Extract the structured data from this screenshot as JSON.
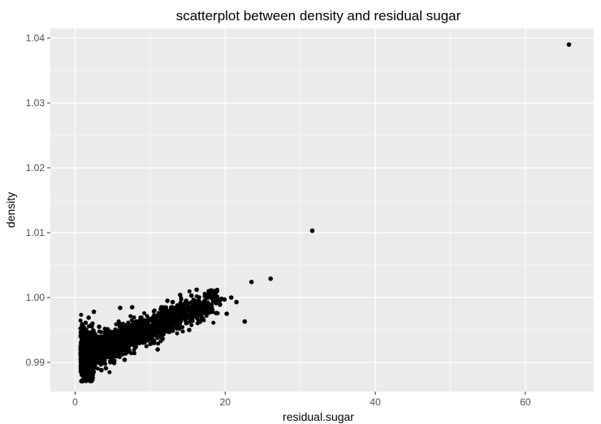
{
  "chart_data": {
    "type": "scatter",
    "title": "scatterplot between density and residual sugar",
    "xlabel": "residual.sugar",
    "ylabel": "density",
    "xlim": [
      -3.3,
      69.1
    ],
    "ylim": [
      0.9855,
      1.0415
    ],
    "x_ticks": [
      0,
      20,
      40,
      60
    ],
    "x_tick_labels": [
      "0",
      "20",
      "40",
      "60"
    ],
    "y_ticks": [
      0.99,
      1.0,
      1.01,
      1.02,
      1.03,
      1.04
    ],
    "y_tick_labels": [
      "0.99",
      "1.00",
      "1.01",
      "1.02",
      "1.03",
      "1.04"
    ],
    "grid": true,
    "background": "#EBEBEB",
    "grid_color": "#FFFFFF",
    "point_color": "#000000",
    "points": [
      [
        65.8,
        1.039
      ],
      [
        31.6,
        1.0103
      ],
      [
        26.05,
        1.0029
      ],
      [
        23.5,
        1.0024
      ],
      [
        22.6,
        0.9963
      ],
      [
        21.5,
        0.9993
      ],
      [
        20.8,
        1.0
      ],
      [
        19.9,
        0.9997
      ],
      [
        19.5,
        0.9998
      ],
      [
        19.25,
        0.9995
      ],
      [
        19.3,
        0.9989
      ],
      [
        18.8,
        0.9976
      ],
      [
        18.4,
        1.0005
      ],
      [
        17.8,
        1.0007
      ],
      [
        16.2,
        1.0012
      ],
      [
        17.4,
        0.9985
      ],
      [
        16.0,
        0.9971
      ],
      [
        17.0,
        0.9968
      ],
      [
        13.0,
        0.9993
      ],
      [
        14.0,
        1.0004
      ],
      [
        12.6,
        0.9952
      ],
      [
        10.3,
        0.993
      ],
      [
        8.0,
        0.9923
      ],
      [
        5.8,
        0.9913
      ],
      [
        5.2,
        0.9899
      ],
      [
        4.1,
        0.9891
      ],
      [
        3.5,
        0.9888
      ],
      [
        2.6,
        0.9897
      ],
      [
        1.5,
        0.9883
      ],
      [
        1.0,
        0.9873
      ],
      [
        0.9,
        0.9871
      ],
      [
        1.2,
        0.9875
      ],
      [
        2.5,
        0.9978
      ],
      [
        1.8,
        0.9969
      ],
      [
        1.4,
        0.9961
      ],
      [
        4.5,
        0.9935
      ],
      [
        6.0,
        0.9984
      ],
      [
        7.6,
        0.9985
      ],
      [
        11.5,
        0.9985
      ],
      [
        12.3,
        0.9995
      ],
      [
        14.8,
        0.9995
      ],
      [
        15.5,
        1.0003
      ],
      [
        20.2,
        0.9975
      ],
      [
        18.1,
        0.9983
      ],
      [
        9.5,
        0.996
      ],
      [
        3.2,
        0.9955
      ],
      [
        5.6,
        0.9941
      ],
      [
        8.8,
        0.9946
      ],
      [
        2.0,
        0.9946
      ],
      [
        10.7,
        0.9942
      ],
      [
        0.8,
        0.9905
      ],
      [
        0.9,
        0.9935
      ],
      [
        1.1,
        0.995
      ],
      [
        6.6,
        0.9904
      ],
      [
        7.2,
        0.9955
      ],
      [
        13.6,
        0.9957
      ],
      [
        16.5,
        0.9963
      ],
      [
        11.0,
        0.992
      ],
      [
        15.2,
        0.995
      ]
    ]
  }
}
